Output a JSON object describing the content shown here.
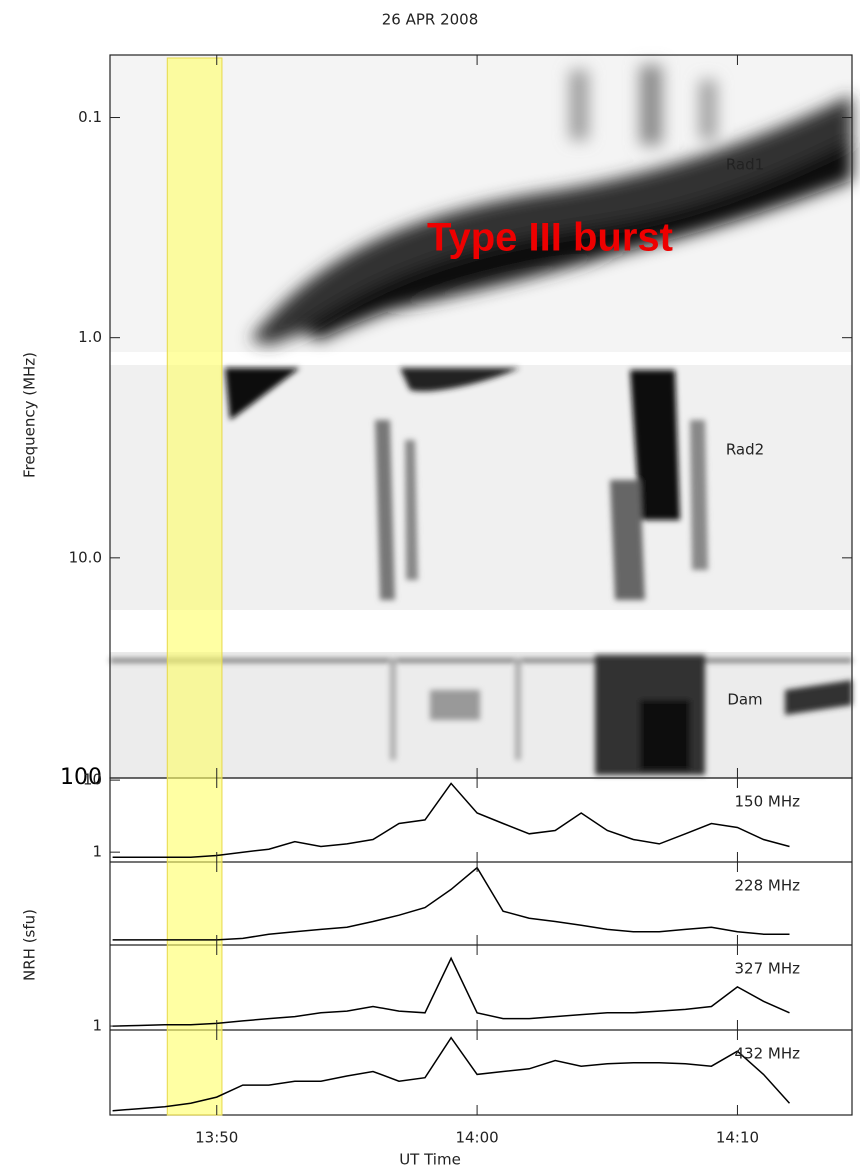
{
  "chart_data": [
    {
      "type": "spectrogram",
      "title": "26 APR 2008",
      "ylabel": "Frequency (MHz)",
      "annotation": "Type III burst",
      "bands": [
        "Rad1",
        "Rad2",
        "Dam"
      ],
      "log_y": true,
      "yreverse": true,
      "ylim": [
        0.052,
        100
      ],
      "yticks": [
        0.1,
        {
          "value": 1,
          "label": "1.0"
        },
        {
          "value": 10,
          "label": "10.0"
        },
        100
      ],
      "xlim": [
        825.9,
        854.4
      ],
      "highlight_x": [
        828.1,
        830.2
      ],
      "highlight_color": "#ffff66"
    },
    {
      "type": "line",
      "label": "150 MHz",
      "log_y": true,
      "color": "#000000",
      "xlim": [
        825.9,
        854.4
      ],
      "ylim": [
        0.73,
        10.7
      ],
      "yticks": [
        10,
        1
      ],
      "x": [
        826,
        827,
        828,
        829,
        830,
        831,
        832,
        833,
        834,
        835,
        836,
        837,
        838,
        839,
        840,
        841,
        842,
        843,
        844,
        845,
        846,
        847,
        848,
        849,
        850,
        851,
        852
      ],
      "values": [
        0.85,
        0.85,
        0.85,
        0.85,
        0.9,
        1.0,
        1.1,
        1.4,
        1.2,
        1.3,
        1.5,
        2.5,
        2.8,
        9,
        3.5,
        2.5,
        1.8,
        2,
        3.5,
        2,
        1.5,
        1.3,
        1.8,
        2.5,
        2.2,
        1.5,
        1.2
      ]
    },
    {
      "type": "line",
      "label": "228 MHz",
      "ylabel": "NRH (sfu)",
      "log_y": true,
      "color": "#000000",
      "xlim": [
        825.9,
        854.4
      ],
      "ylim": [
        0.85,
        12
      ],
      "x": [
        826,
        827,
        828,
        829,
        830,
        831,
        832,
        833,
        834,
        835,
        836,
        837,
        838,
        839,
        840,
        841,
        842,
        843,
        844,
        845,
        846,
        847,
        848,
        849,
        850,
        851,
        852
      ],
      "values": [
        1,
        1,
        1,
        1,
        1,
        1.05,
        1.2,
        1.3,
        1.4,
        1.5,
        1.8,
        2.2,
        2.8,
        5,
        10,
        2.5,
        2,
        1.8,
        1.6,
        1.4,
        1.3,
        1.3,
        1.4,
        1.5,
        1.3,
        1.2,
        1.2
      ]
    },
    {
      "type": "line",
      "label": "327 MHz",
      "log_y": true,
      "color": "#000000",
      "xlim": [
        825.9,
        854.4
      ],
      "ylim": [
        0.87,
        17.6
      ],
      "yticks": [
        1
      ],
      "x": [
        826,
        827,
        828,
        829,
        830,
        831,
        832,
        833,
        834,
        835,
        836,
        837,
        838,
        839,
        840,
        841,
        842,
        843,
        844,
        845,
        846,
        847,
        848,
        849,
        850,
        851,
        852
      ],
      "values": [
        1.0,
        1.02,
        1.05,
        1.05,
        1.1,
        1.2,
        1.3,
        1.4,
        1.6,
        1.7,
        2.0,
        1.7,
        1.6,
        11,
        1.6,
        1.3,
        1.3,
        1.4,
        1.5,
        1.6,
        1.6,
        1.7,
        1.8,
        2.0,
        4,
        2.4,
        1.6
      ]
    },
    {
      "type": "line",
      "label": "432 MHz",
      "log_y": true,
      "color": "#000000",
      "xlim": [
        825.9,
        854.4
      ],
      "ylim": [
        0.8,
        8
      ],
      "x": [
        826,
        827,
        828,
        829,
        830,
        831,
        832,
        833,
        834,
        835,
        836,
        837,
        838,
        839,
        840,
        841,
        842,
        843,
        844,
        845,
        846,
        847,
        848,
        849,
        850,
        851,
        852
      ],
      "values": [
        0.9,
        0.95,
        1.0,
        1.1,
        1.3,
        1.8,
        1.8,
        2.0,
        2.0,
        2.3,
        2.6,
        2.0,
        2.2,
        6.5,
        2.4,
        2.6,
        2.8,
        3.5,
        3.0,
        3.2,
        3.3,
        3.3,
        3.2,
        3.0,
        4.5,
        2.4,
        1.1
      ],
      "xlabel": "UT Time",
      "xticks": [
        {
          "value": 830,
          "label": "13:50"
        },
        {
          "value": 840,
          "label": "14:00"
        },
        {
          "value": 850,
          "label": "14:10"
        }
      ]
    }
  ]
}
